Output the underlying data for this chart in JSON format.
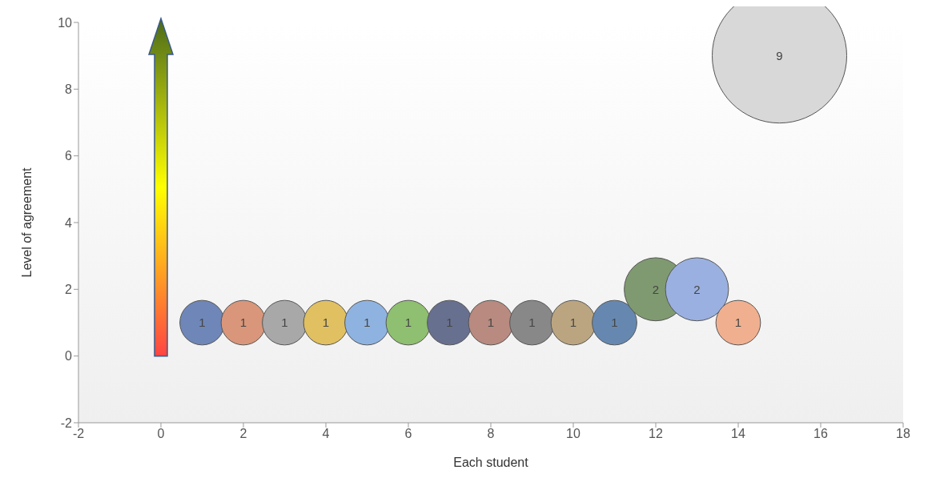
{
  "chart_data": {
    "type": "bubble",
    "xlabel": "Each student",
    "ylabel": "Level of agreement",
    "x": [
      1,
      2,
      3,
      4,
      5,
      6,
      7,
      8,
      9,
      10,
      11,
      12,
      13,
      14,
      15
    ],
    "values": [
      1,
      1,
      1,
      1,
      1,
      1,
      1,
      1,
      1,
      1,
      1,
      2,
      2,
      1,
      9
    ],
    "sizes": [
      0.11,
      0.11,
      0.11,
      0.11,
      0.11,
      0.11,
      0.11,
      0.11,
      0.11,
      0.11,
      0.11,
      0.22,
      0.22,
      0.11,
      1
    ],
    "colors": [
      "#6f86b8",
      "#d9967a",
      "#a8a8a8",
      "#e0c060",
      "#8fb3e0",
      "#8fbf70",
      "#687090",
      "#b88a80",
      "#888888",
      "#bba580",
      "#6688b0",
      "#7f9a70",
      "#9ab0e0",
      "#f0b090",
      "#d8d8d8"
    ],
    "data_labels": true,
    "xlim": [
      -2,
      18
    ],
    "xticks": [
      -2,
      0,
      2,
      4,
      6,
      8,
      10,
      12,
      14,
      16,
      18
    ],
    "ylim": [
      -2,
      10
    ],
    "yticks": [
      -2,
      0,
      2,
      4,
      6,
      8,
      10
    ],
    "grid": false,
    "legend": false
  }
}
